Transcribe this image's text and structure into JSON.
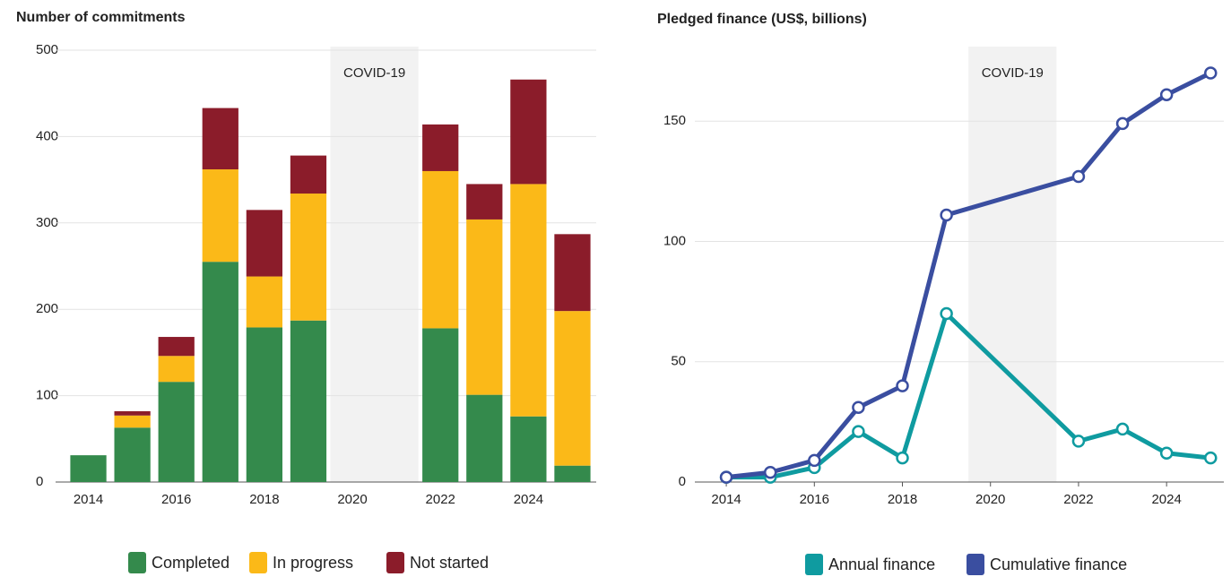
{
  "chart_data": [
    {
      "type": "stacked_bar",
      "title": "Number of commitments",
      "categories": [
        "2014",
        null,
        "2016",
        null,
        "2018",
        null,
        "2020",
        null,
        "2022",
        null,
        "2024",
        null
      ],
      "series": [
        {
          "name": "Completed",
          "color": "#348a4c",
          "values": [
            31,
            63,
            116,
            255,
            179,
            187,
            null,
            null,
            178,
            101,
            76,
            19
          ]
        },
        {
          "name": "In progress",
          "color": "#fbb918",
          "values": [
            null,
            14,
            30,
            107,
            59,
            147,
            null,
            null,
            182,
            203,
            269,
            179
          ]
        },
        {
          "name": "Not started",
          "color": "#8b1c2a",
          "values": [
            null,
            5,
            22,
            71,
            77,
            44,
            null,
            null,
            54,
            41,
            121,
            89
          ]
        }
      ],
      "ylim": [
        0,
        500
      ],
      "yticks": [
        0,
        100,
        200,
        300,
        400,
        500
      ],
      "grid": true,
      "annotation": "COVID-19",
      "legend": "bottom"
    },
    {
      "type": "line",
      "title": "Pledged finance (US$, billions)",
      "x": [
        2014,
        2015,
        2016,
        2017,
        2018,
        2019,
        2022,
        2023,
        2024,
        2025
      ],
      "series": [
        {
          "name": "Annual finance",
          "color": "#0f9ba0",
          "values": [
            2,
            2,
            6,
            21,
            10,
            70,
            17,
            22,
            12,
            10
          ]
        },
        {
          "name": "Cumulative finance",
          "color": "#3a4ea0",
          "values": [
            2,
            4,
            9,
            31,
            40,
            111,
            127,
            149,
            161,
            170
          ]
        }
      ],
      "xlim": [
        2013.53,
        2025.3
      ],
      "xticks": [
        2014,
        2016,
        2018,
        2020,
        2022,
        2024
      ],
      "ylim": [
        0,
        181
      ],
      "yticks": [
        0,
        50,
        100,
        150
      ],
      "grid": true,
      "annotation": "COVID-19",
      "legend": "bottom"
    }
  ]
}
